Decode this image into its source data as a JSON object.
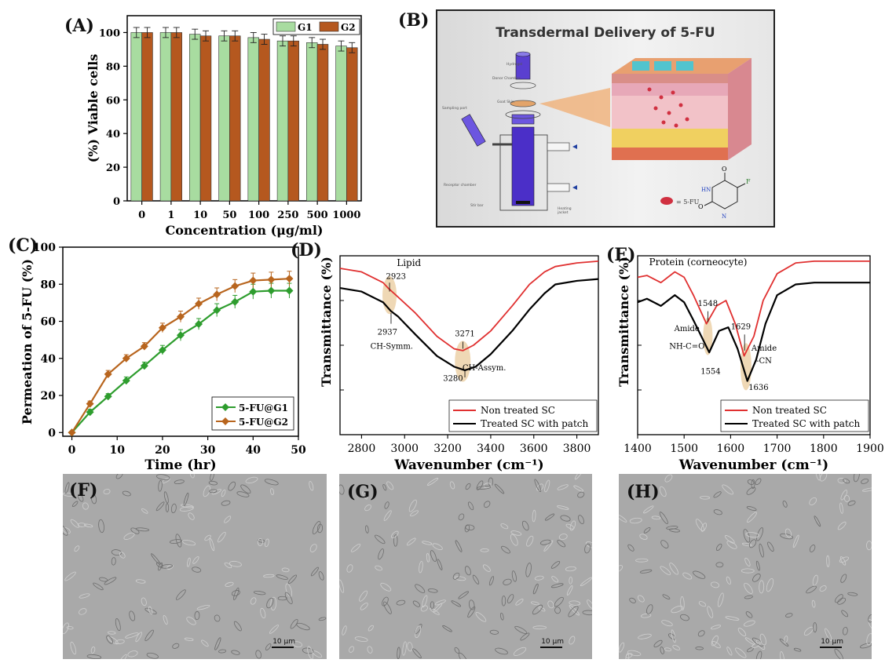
{
  "panels": {
    "A": {
      "label": "(A)"
    },
    "B": {
      "label": "(B)",
      "title": "Transdermal Delivery of 5-FU",
      "legend_5fu": "= 5-FU",
      "apparatus_labels": [
        "Hydrogel",
        "Donor Chamber",
        "Goat Skin",
        "Sampling port",
        "Receptor chamber",
        "Stir bar",
        "Heating jacket"
      ]
    },
    "C": {
      "label": "(C)"
    },
    "D": {
      "label": "(D)"
    },
    "E": {
      "label": "(E)"
    },
    "F": {
      "label": "(F)",
      "scale": "10 μm"
    },
    "G": {
      "label": "(G)",
      "scale": "10 μm"
    },
    "H": {
      "label": "(H)",
      "scale": "10 μm"
    }
  },
  "colors": {
    "g1": "#a8dca0",
    "g2": "#b5581f",
    "c_g1": "#2e9d2e",
    "c_g2": "#b8651e",
    "ir_red": "#e03030",
    "ir_black": "#000000",
    "highlight": "#e8c896"
  },
  "chart_data": [
    {
      "id": "A",
      "type": "bar",
      "ylabel": "(%) Viable cells",
      "xlabel": "Concentration (μg/ml)",
      "categories": [
        "0",
        "1",
        "10",
        "50",
        "100",
        "250",
        "500",
        "1000"
      ],
      "ylim": [
        0,
        110
      ],
      "yticks": [
        0,
        20,
        40,
        60,
        80,
        100
      ],
      "legend": "top-right",
      "series": [
        {
          "name": "G1",
          "values": [
            100,
            100,
            99,
            98,
            97,
            95,
            94,
            92
          ],
          "errors": [
            3,
            3,
            3,
            3,
            3,
            3,
            3,
            3
          ]
        },
        {
          "name": "G2",
          "values": [
            100,
            100,
            98,
            98,
            96,
            95,
            93,
            91
          ],
          "errors": [
            3,
            3,
            3,
            3,
            3,
            3,
            3,
            3
          ]
        }
      ]
    },
    {
      "id": "C",
      "type": "line",
      "ylabel": "Permeation of 5-FU (%)",
      "xlabel": "Time (hr)",
      "xlim": [
        -2,
        50
      ],
      "ylim": [
        -2,
        100
      ],
      "xticks": [
        0,
        10,
        20,
        30,
        40,
        50
      ],
      "yticks": [
        0,
        20,
        40,
        60,
        80,
        100
      ],
      "legend": "bottom-right",
      "x": [
        0,
        4,
        8,
        12,
        16,
        20,
        24,
        28,
        32,
        36,
        40,
        44,
        48
      ],
      "series": [
        {
          "name": "5-FU@G1",
          "values": [
            0,
            11,
            19.5,
            28,
            36,
            44.5,
            52.5,
            58.5,
            66,
            70.5,
            76,
            76.5,
            76.5
          ],
          "errors": [
            0,
            1.5,
            1.5,
            2,
            2,
            2.5,
            3,
            3,
            3.5,
            3.5,
            4,
            4,
            4
          ]
        },
        {
          "name": "5-FU@G2",
          "values": [
            0,
            15.5,
            31.5,
            40,
            46.5,
            56.5,
            62.5,
            69.5,
            74.5,
            79,
            82,
            82.5,
            83
          ],
          "errors": [
            0,
            1.5,
            2,
            2,
            2,
            2.5,
            3,
            3,
            3.5,
            3.5,
            4,
            4,
            4
          ]
        }
      ]
    },
    {
      "id": "D",
      "type": "line",
      "ylabel": "Transmittance (%)",
      "xlabel": "Wavenumber (cm⁻¹)",
      "xlim": [
        2700,
        3900
      ],
      "xticks": [
        2800,
        3000,
        3200,
        3400,
        3600,
        3800
      ],
      "title": "Lipid",
      "legend": "bottom-right",
      "series": [
        {
          "name": "Non treated SC",
          "x": [
            2700,
            2800,
            2900,
            2923,
            2960,
            3050,
            3150,
            3230,
            3271,
            3320,
            3400,
            3500,
            3580,
            3650,
            3700,
            3800,
            3900
          ],
          "values": [
            0.93,
            0.91,
            0.85,
            0.82,
            0.78,
            0.68,
            0.55,
            0.48,
            0.47,
            0.5,
            0.58,
            0.72,
            0.84,
            0.91,
            0.94,
            0.96,
            0.97
          ]
        },
        {
          "name": "Treated SC with patch",
          "x": [
            2700,
            2800,
            2900,
            2937,
            2970,
            3050,
            3150,
            3230,
            3280,
            3330,
            3400,
            3500,
            3580,
            3650,
            3700,
            3800,
            3900
          ],
          "values": [
            0.82,
            0.8,
            0.74,
            0.69,
            0.66,
            0.56,
            0.44,
            0.38,
            0.36,
            0.38,
            0.45,
            0.58,
            0.7,
            0.79,
            0.84,
            0.86,
            0.87
          ]
        }
      ],
      "annotations": [
        "2923",
        "2937",
        "CH-Symm.",
        "3271",
        "3280",
        "CH-Assym."
      ]
    },
    {
      "id": "E",
      "type": "line",
      "ylabel": "Transmittance (%)",
      "xlabel": "Wavenumber (cm⁻¹)",
      "xlim": [
        1400,
        1900
      ],
      "xticks": [
        1400,
        1500,
        1600,
        1700,
        1800,
        1900
      ],
      "title": "Protein (corneocyte)",
      "legend": "bottom-right",
      "series": [
        {
          "name": "Non treated SC",
          "x": [
            1400,
            1420,
            1450,
            1480,
            1500,
            1520,
            1548,
            1570,
            1590,
            1610,
            1629,
            1650,
            1670,
            1700,
            1740,
            1780,
            1900
          ],
          "values": [
            0.88,
            0.89,
            0.85,
            0.91,
            0.88,
            0.78,
            0.62,
            0.72,
            0.75,
            0.62,
            0.44,
            0.55,
            0.75,
            0.9,
            0.96,
            0.97,
            0.97
          ]
        },
        {
          "name": "Treated SC with patch",
          "x": [
            1400,
            1420,
            1450,
            1480,
            1500,
            1520,
            1554,
            1575,
            1595,
            1615,
            1636,
            1655,
            1675,
            1700,
            1740,
            1780,
            1900
          ],
          "values": [
            0.74,
            0.76,
            0.72,
            0.78,
            0.74,
            0.64,
            0.46,
            0.58,
            0.6,
            0.48,
            0.3,
            0.42,
            0.62,
            0.78,
            0.84,
            0.85,
            0.85
          ]
        }
      ],
      "annotations": [
        "1548",
        "Amide",
        "NH-C=O",
        "1554",
        "1629",
        "Amide",
        "-CN",
        "1636"
      ]
    }
  ]
}
